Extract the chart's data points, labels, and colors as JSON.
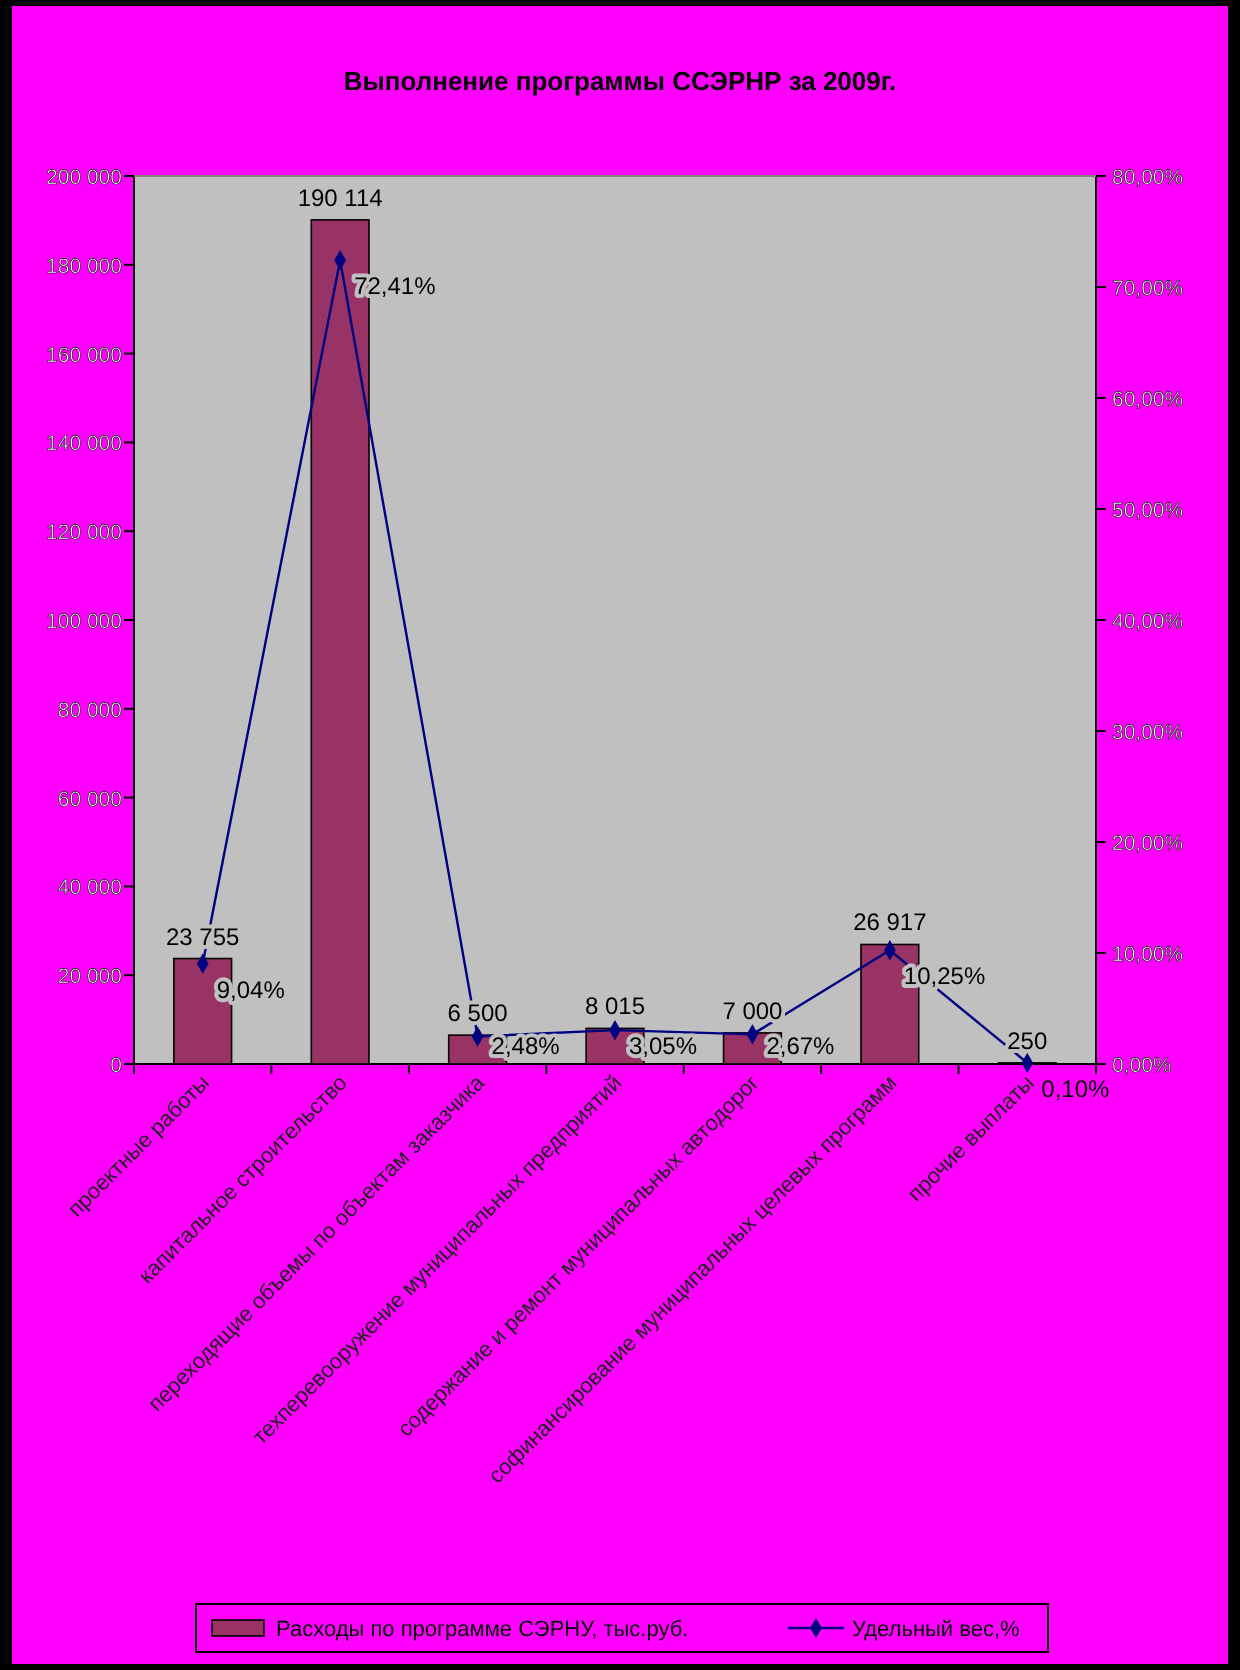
{
  "chart_data": {
    "type": "bar",
    "title": "Выполнение программы ССЭРНР за 2009г.",
    "categories": [
      "проектные работы",
      "капитальное строительство",
      "переходящие объемы по объектам заказчика",
      "техперевооружение муниципальных предприятий",
      "содержание и ремонт муниципальных автодорог",
      "софинансирование муниципальных целевых программ",
      "прочие выплаты"
    ],
    "series": [
      {
        "name": "Расходы по программе СЭРНУ, тыс.руб.",
        "color": "#993366",
        "values": [
          23755,
          190114,
          6500,
          8015,
          7000,
          26917,
          250
        ],
        "value_labels": [
          "23 755",
          "190 114",
          "6 500",
          "8 015",
          "7 000",
          "26 917",
          "250"
        ]
      },
      {
        "name": "Удельный вес,%",
        "type": "line",
        "axis": "y2",
        "color": "#000080",
        "marker": "diamond",
        "values": [
          9.04,
          72.41,
          2.48,
          3.05,
          2.67,
          10.25,
          0.1
        ],
        "value_labels": [
          "9,04%",
          "72,41%",
          "2,48%",
          "3,05%",
          "2,67%",
          "10,25%",
          "0,10%"
        ]
      }
    ],
    "ylim": [
      0,
      200000
    ],
    "yticks": [
      {
        "value": 0,
        "label": "0"
      },
      {
        "value": 20000,
        "label": "20 000"
      },
      {
        "value": 40000,
        "label": "40 000"
      },
      {
        "value": 60000,
        "label": "60 000"
      },
      {
        "value": 80000,
        "label": "80 000"
      },
      {
        "value": 100000,
        "label": "100 000"
      },
      {
        "value": 120000,
        "label": "120 000"
      },
      {
        "value": 140000,
        "label": "140 000"
      },
      {
        "value": 160000,
        "label": "160 000"
      },
      {
        "value": 180000,
        "label": "180 000"
      },
      {
        "value": 200000,
        "label": "200 000"
      }
    ],
    "y2lim": [
      0,
      80
    ],
    "y2ticks": [
      {
        "value": 0,
        "label": "0,00%"
      },
      {
        "value": 10,
        "label": "10,00%"
      },
      {
        "value": 20,
        "label": "20,00%"
      },
      {
        "value": 30,
        "label": "30,00%"
      },
      {
        "value": 40,
        "label": "40,00%"
      },
      {
        "value": 50,
        "label": "50,00%"
      },
      {
        "value": 60,
        "label": "60,00%"
      },
      {
        "value": 70,
        "label": "70,00%"
      },
      {
        "value": 80,
        "label": "80,00%"
      }
    ],
    "legend": "bottom"
  }
}
